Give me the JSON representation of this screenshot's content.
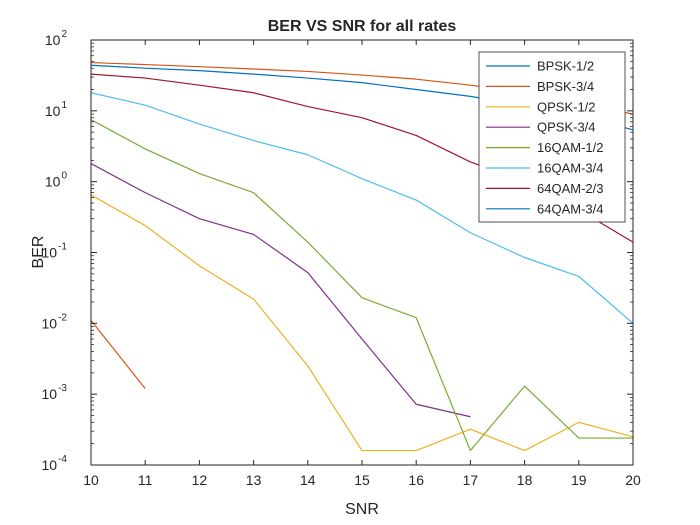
{
  "chart_data": {
    "type": "line",
    "title": "BER VS SNR for all rates",
    "xlabel": "SNR",
    "ylabel": "BER",
    "xlim": [
      10,
      20
    ],
    "ylim": [
      0.0001,
      100
    ],
    "yscale": "log",
    "grid": false,
    "legend_position": "top-right",
    "x_ticks": [
      "10",
      "11",
      "12",
      "13",
      "14",
      "15",
      "16",
      "17",
      "18",
      "19",
      "20"
    ],
    "y_ticks": [
      {
        "value": 0.0001,
        "base": "10",
        "exp": "-4"
      },
      {
        "value": 0.001,
        "base": "10",
        "exp": "-3"
      },
      {
        "value": 0.01,
        "base": "10",
        "exp": "-2"
      },
      {
        "value": 0.1,
        "base": "10",
        "exp": "-1"
      },
      {
        "value": 1,
        "base": "10",
        "exp": "0"
      },
      {
        "value": 10,
        "base": "10",
        "exp": "1"
      },
      {
        "value": 100,
        "base": "10",
        "exp": "2"
      }
    ],
    "series": [
      {
        "name": "BPSK-1/2",
        "color": "#0072BD",
        "points": [
          [
            10,
            null
          ],
          [
            11,
            null
          ],
          [
            12,
            null
          ],
          [
            13,
            null
          ],
          [
            14,
            null
          ],
          [
            15,
            null
          ],
          [
            16,
            null
          ],
          [
            17,
            null
          ],
          [
            18,
            null
          ],
          [
            19,
            null
          ],
          [
            20,
            null
          ]
        ]
      },
      {
        "name": "BPSK-3/4",
        "color": "#D95319",
        "points": [
          [
            10,
            0.011
          ],
          [
            11,
            0.0012
          ],
          [
            12,
            null
          ],
          [
            13,
            null
          ],
          [
            14,
            null
          ],
          [
            15,
            null
          ],
          [
            16,
            null
          ],
          [
            17,
            null
          ],
          [
            18,
            null
          ],
          [
            19,
            null
          ],
          [
            20,
            null
          ]
        ]
      },
      {
        "name": "QPSK-1/2",
        "color": "#EDB120",
        "points": [
          [
            10,
            0.65
          ],
          [
            11,
            0.24
          ],
          [
            12,
            0.065
          ],
          [
            13,
            0.022
          ],
          [
            14,
            0.0025
          ],
          [
            15,
            0.00016
          ],
          [
            16,
            0.00016
          ],
          [
            17,
            0.00032
          ],
          [
            18,
            0.00016
          ],
          [
            19,
            0.0004
          ],
          [
            20,
            0.00025
          ]
        ]
      },
      {
        "name": "QPSK-3/4",
        "color": "#7E2F8E",
        "points": [
          [
            10,
            1.8
          ],
          [
            11,
            0.7
          ],
          [
            12,
            0.3
          ],
          [
            13,
            0.18
          ],
          [
            14,
            0.052
          ],
          [
            15,
            0.006
          ],
          [
            16,
            0.00072
          ],
          [
            17,
            0.00048
          ],
          [
            18,
            null
          ],
          [
            19,
            null
          ],
          [
            20,
            null
          ]
        ]
      },
      {
        "name": "16QAM-1/2",
        "color": "#77AC30",
        "points": [
          [
            10,
            7.5
          ],
          [
            11,
            2.9
          ],
          [
            12,
            1.3
          ],
          [
            13,
            0.7
          ],
          [
            14,
            0.14
          ],
          [
            15,
            0.023
          ],
          [
            16,
            0.012
          ],
          [
            17,
            0.00016
          ],
          [
            18,
            0.0013
          ],
          [
            19,
            0.00024
          ],
          [
            20,
            0.00024
          ]
        ]
      },
      {
        "name": "16QAM-3/4",
        "color": "#4DBEEE",
        "points": [
          [
            10,
            18
          ],
          [
            11,
            12
          ],
          [
            12,
            6.5
          ],
          [
            13,
            3.8
          ],
          [
            14,
            2.4
          ],
          [
            15,
            1.1
          ],
          [
            16,
            0.55
          ],
          [
            17,
            0.19
          ],
          [
            18,
            0.085
          ],
          [
            19,
            0.046
          ],
          [
            20,
            0.01
          ]
        ]
      },
      {
        "name": "64QAM-2/3",
        "color": "#A2142F",
        "points": [
          [
            10,
            33
          ],
          [
            11,
            29
          ],
          [
            12,
            23
          ],
          [
            13,
            18
          ],
          [
            14,
            11.5
          ],
          [
            15,
            8
          ],
          [
            16,
            4.5
          ],
          [
            17,
            1.9
          ],
          [
            18,
            1.0
          ],
          [
            19,
            0.4
          ],
          [
            20,
            0.14
          ]
        ]
      },
      {
        "name": "64QAM-3/4",
        "color": "#0072BD",
        "points": [
          [
            10,
            44
          ],
          [
            11,
            40
          ],
          [
            12,
            37
          ],
          [
            13,
            33
          ],
          [
            14,
            29
          ],
          [
            15,
            25
          ],
          [
            16,
            20
          ],
          [
            17,
            16
          ],
          [
            18,
            12
          ],
          [
            19,
            8.5
          ],
          [
            20,
            5.4
          ]
        ]
      }
    ],
    "extra_lines": [
      {
        "color": "#D95319",
        "points": [
          [
            10,
            48
          ],
          [
            11,
            45
          ],
          [
            12,
            42
          ],
          [
            13,
            39
          ],
          [
            14,
            36
          ],
          [
            15,
            32
          ],
          [
            16,
            28
          ],
          [
            17,
            23
          ],
          [
            18,
            18
          ],
          [
            19,
            13
          ],
          [
            20,
            9
          ]
        ]
      }
    ]
  }
}
